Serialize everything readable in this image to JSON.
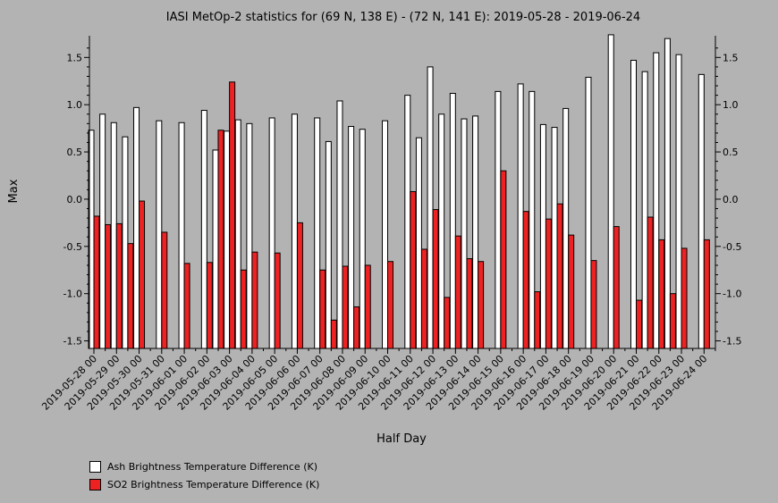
{
  "chart_data": {
    "type": "bar",
    "title": "IASI MetOp-2 statistics for (69 N, 138 E) - (72 N, 141 E): 2019-05-28 - 2019-06-24",
    "xlabel": "Half Day",
    "ylabel": "Max",
    "ylim": [
      -1.58,
      1.73
    ],
    "yticks": [
      -1.5,
      -1.0,
      -0.5,
      0.0,
      0.5,
      1.0,
      1.5
    ],
    "ytick_labels": [
      "-1.5",
      "-1.0",
      "-0.5",
      "0.0",
      "0.5",
      "1.0",
      "1.5"
    ],
    "xtick_labels": [
      "2019-05-28 00",
      "2019-05-29 00",
      "2019-05-30 00",
      "2019-05-31 00",
      "2019-06-01 00",
      "2019-06-02 00",
      "2019-06-03 00",
      "2019-06-04 00",
      "2019-06-05 00",
      "2019-06-06 00",
      "2019-06-07 00",
      "2019-06-08 00",
      "2019-06-09 00",
      "2019-06-10 00",
      "2019-06-11 00",
      "2019-06-12 00",
      "2019-06-13 00",
      "2019-06-14 00",
      "2019-06-15 00",
      "2019-06-16 00",
      "2019-06-17 00",
      "2019-06-18 00",
      "2019-06-19 00",
      "2019-06-20 00",
      "2019-06-21 00",
      "2019-06-22 00",
      "2019-06-23 00",
      "2019-06-24 00"
    ],
    "x": [
      "2019-05-28 00",
      "2019-05-28 12",
      "2019-05-29 00",
      "2019-05-29 12",
      "2019-05-30 00",
      "2019-05-31 00",
      "2019-06-01 00",
      "2019-06-02 00",
      "2019-06-02 12",
      "2019-06-03 00",
      "2019-06-03 12",
      "2019-06-04 00",
      "2019-06-05 00",
      "2019-06-06 00",
      "2019-06-07 00",
      "2019-06-07 12",
      "2019-06-08 00",
      "2019-06-08 12",
      "2019-06-09 00",
      "2019-06-10 00",
      "2019-06-11 00",
      "2019-06-11 12",
      "2019-06-12 00",
      "2019-06-12 12",
      "2019-06-13 00",
      "2019-06-13 12",
      "2019-06-14 00",
      "2019-06-15 00",
      "2019-06-16 00",
      "2019-06-16 12",
      "2019-06-17 00",
      "2019-06-17 12",
      "2019-06-18 00",
      "2019-06-19 00",
      "2019-06-20 00",
      "2019-06-21 00",
      "2019-06-21 12",
      "2019-06-22 00",
      "2019-06-22 12",
      "2019-06-23 00",
      "2019-06-24 00"
    ],
    "series": [
      {
        "name": "Ash Brightness Temperature Difference (K)",
        "color": "#ffffff",
        "values": [
          0.73,
          0.9,
          0.81,
          0.66,
          0.97,
          0.83,
          0.81,
          0.94,
          0.52,
          0.72,
          0.84,
          0.8,
          0.86,
          0.9,
          0.86,
          0.61,
          1.04,
          0.77,
          0.74,
          0.83,
          1.1,
          0.65,
          1.4,
          0.9,
          1.12,
          0.85,
          0.88,
          1.14,
          1.22,
          1.14,
          0.79,
          0.76,
          0.96,
          1.29,
          1.74,
          1.47,
          1.35,
          1.55,
          1.7,
          1.53,
          1.32
        ]
      },
      {
        "name": "SO2 Brightness Temperature Difference (K)",
        "color": "#ee2222",
        "values": [
          -0.18,
          -0.27,
          -0.26,
          -0.47,
          -0.02,
          -0.35,
          -0.68,
          -0.67,
          0.73,
          1.24,
          -0.75,
          -0.56,
          -0.57,
          -0.25,
          -0.75,
          -1.28,
          -0.71,
          -1.14,
          -0.7,
          -0.66,
          0.08,
          -0.53,
          -0.11,
          -1.04,
          -0.39,
          -0.63,
          -0.66,
          0.3,
          -0.13,
          -0.98,
          -0.21,
          -0.05,
          -0.38,
          -0.65,
          -0.29,
          -1.07,
          -0.19,
          -0.43,
          -1.0,
          -0.52,
          -0.43
        ]
      }
    ],
    "legend_position": "bottom-left",
    "grid": false,
    "background": "#b3b3b3"
  }
}
